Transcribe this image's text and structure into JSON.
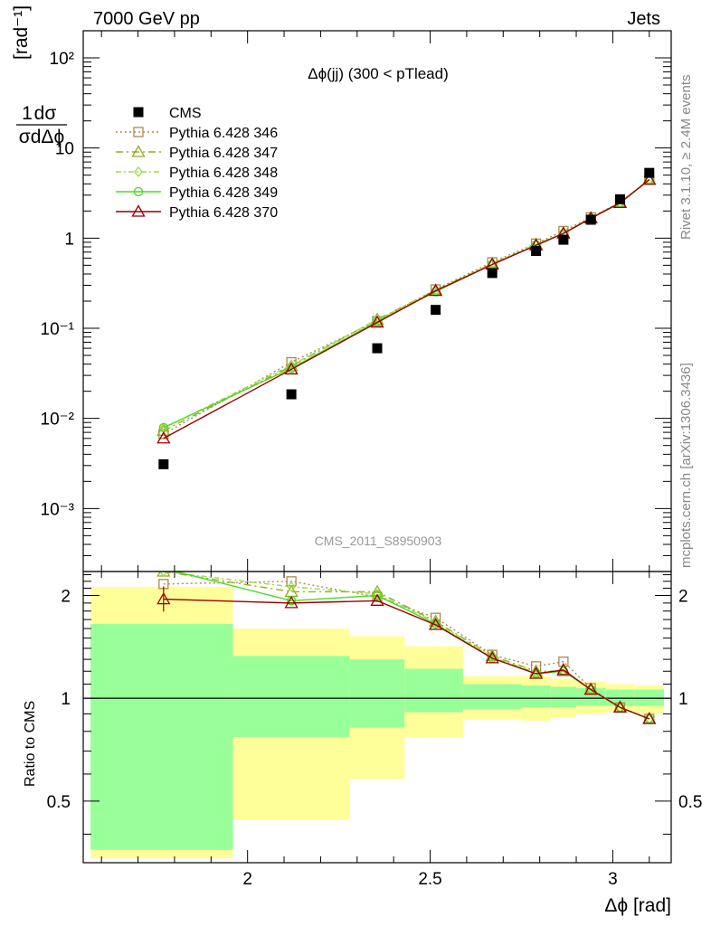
{
  "header": {
    "left": "7000 GeV pp",
    "right": "Jets"
  },
  "side_labels": {
    "rivet": "Rivet 3.1.10, ≥ 2.4M events",
    "mcplots": "mcplots.cern.ch [arXiv:1306.3436]"
  },
  "chart_data": {
    "type": "scatter",
    "title": "Δϕ(jj) (300 < pTlead)",
    "watermark": "CMS_2011_S8950903",
    "xlabel": "Δϕ [rad]",
    "ylabel": "1/σ dσ/dΔϕ [rad⁻¹]",
    "ratio_ylabel": "Ratio to CMS",
    "xlim": [
      1.55,
      3.16
    ],
    "ylim": [
      0.0002,
      200
    ],
    "ratio_ylim": [
      0.33,
      2.35
    ],
    "yscale": "log",
    "ratio_yscale": "log",
    "x_ticks": [
      "2",
      "2.5",
      "3"
    ],
    "y_ticks": [
      "10⁻³",
      "10⁻²",
      "10⁻¹",
      "1",
      "10",
      "10²"
    ],
    "ratio_ticks": [
      "0.5",
      "1",
      "2"
    ],
    "x": [
      1.77,
      2.12,
      2.355,
      2.515,
      2.67,
      2.79,
      2.865,
      2.94,
      3.02,
      3.1
    ],
    "band_edges": [
      1.57,
      1.96,
      2.28,
      2.43,
      2.59,
      2.75,
      2.83,
      2.9,
      2.98,
      3.06,
      3.14
    ],
    "band_inner": [
      [
        0.36,
        1.65
      ],
      [
        0.77,
        1.33
      ],
      [
        0.82,
        1.3
      ],
      [
        0.91,
        1.22
      ],
      [
        0.93,
        1.1
      ],
      [
        0.94,
        1.09
      ],
      [
        0.94,
        1.08
      ],
      [
        0.95,
        1.07
      ],
      [
        0.95,
        1.06
      ],
      [
        0.95,
        1.06
      ]
    ],
    "band_outer": [
      [
        0.34,
        2.12
      ],
      [
        0.44,
        1.6
      ],
      [
        0.58,
        1.52
      ],
      [
        0.77,
        1.42
      ],
      [
        0.87,
        1.16
      ],
      [
        0.86,
        1.16
      ],
      [
        0.88,
        1.14
      ],
      [
        0.9,
        1.12
      ],
      [
        0.91,
        1.1
      ],
      [
        0.9,
        1.09
      ]
    ],
    "data": {
      "name": "CMS",
      "color": "#000000",
      "values": [
        0.0031,
        0.0185,
        0.06,
        0.16,
        0.41,
        0.72,
        0.96,
        1.6,
        2.7,
        5.3
      ]
    },
    "series": [
      {
        "name": "Pythia 6.428 346",
        "color": "#b08850",
        "dash": "2,3",
        "marker": "square-open",
        "values": [
          0.0067,
          0.042,
          0.12,
          0.27,
          0.54,
          0.87,
          1.2,
          1.7,
          2.5,
          4.5
        ],
        "ratio": [
          2.16,
          2.2,
          1.98,
          1.72,
          1.34,
          1.24,
          1.28,
          1.07,
          0.94,
          0.87
        ]
      },
      {
        "name": "Pythia 6.428 347",
        "color": "#9aaa20",
        "dash": "8,4,2,4",
        "marker": "triangle-open",
        "values": [
          0.0073,
          0.038,
          0.125,
          0.265,
          0.52,
          0.85,
          1.13,
          1.68,
          2.48,
          4.45
        ],
        "ratio": [
          2.35,
          2.05,
          2.05,
          1.68,
          1.33,
          1.2,
          1.2,
          1.06,
          0.94,
          0.87
        ]
      },
      {
        "name": "Pythia 6.428 348",
        "color": "#99dd44",
        "dash": "6,3,2,3",
        "marker": "diamond-open",
        "values": [
          0.0078,
          0.039,
          0.124,
          0.262,
          0.515,
          0.845,
          1.12,
          1.67,
          2.47,
          4.45
        ],
        "ratio": [
          2.35,
          2.12,
          2.02,
          1.67,
          1.32,
          1.19,
          1.2,
          1.06,
          0.94,
          0.87
        ]
      },
      {
        "name": "Pythia 6.428 349",
        "color": "#44dd22",
        "dash": "",
        "marker": "circle-open",
        "values": [
          0.0079,
          0.036,
          0.119,
          0.255,
          0.51,
          0.84,
          1.12,
          1.66,
          2.46,
          4.45
        ],
        "ratio": [
          2.4,
          1.93,
          2.0,
          1.65,
          1.31,
          1.18,
          1.2,
          1.06,
          0.94,
          0.87
        ]
      },
      {
        "name": "Pythia 6.428 370",
        "color": "#990000",
        "dash": "",
        "marker": "triangle-open",
        "values": [
          0.006,
          0.035,
          0.116,
          0.26,
          0.51,
          0.83,
          1.13,
          1.66,
          2.46,
          4.45
        ],
        "ratio": [
          1.95,
          1.9,
          1.93,
          1.64,
          1.31,
          1.18,
          1.21,
          1.06,
          0.94,
          0.87
        ]
      }
    ]
  }
}
